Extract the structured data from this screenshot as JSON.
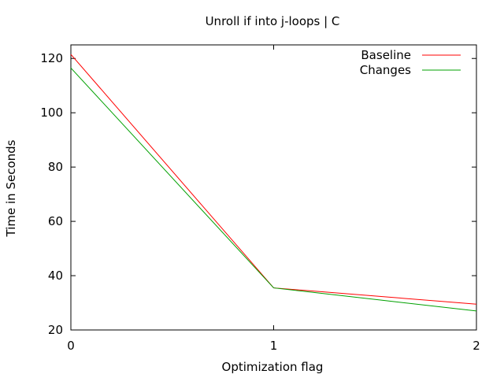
{
  "chart_data": {
    "type": "line",
    "title": "Unroll if into j-loops | C",
    "xlabel": "Optimization flag",
    "ylabel": "Time in Seconds",
    "x": [
      0,
      1,
      2
    ],
    "xlim": [
      0,
      2
    ],
    "ylim": [
      20,
      125
    ],
    "xticks": [
      0,
      1,
      2
    ],
    "yticks": [
      20,
      40,
      60,
      80,
      100,
      120
    ],
    "grid": false,
    "legend_position": "top-right",
    "series": [
      {
        "name": "Baseline",
        "color": "#ff0000",
        "values": [
          121.5,
          35.5,
          29.5
        ]
      },
      {
        "name": "Changes",
        "color": "#00a000",
        "values": [
          116.5,
          35.5,
          27.0
        ]
      }
    ]
  }
}
